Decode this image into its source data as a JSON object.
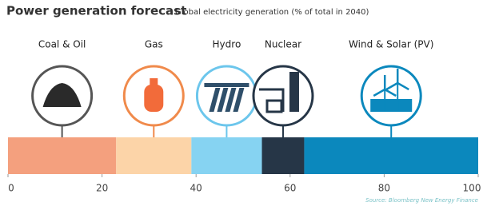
{
  "chart_data": {
    "type": "stacked-bar",
    "title": "Power generation forecast",
    "subtitle": "Global electricity generation (% of total in 2040)",
    "source": "Source: Bloomberg New Energy Finance",
    "categories": [
      "Coal & Oil",
      "Gas",
      "Hydro",
      "Nuclear",
      "Wind & Solar (PV)"
    ],
    "values": [
      23,
      16,
      15,
      9,
      37
    ],
    "colors": [
      "#f4a07e",
      "#fcd4a8",
      "#86d3f2",
      "#263647",
      "#0b88bd"
    ],
    "ring_colors": [
      "#555555",
      "#f08a4b",
      "#6cc6ec",
      "#263647",
      "#0b88bd"
    ],
    "xlim": [
      0,
      100
    ],
    "xticks": [
      0,
      20,
      40,
      60,
      80,
      100
    ]
  }
}
